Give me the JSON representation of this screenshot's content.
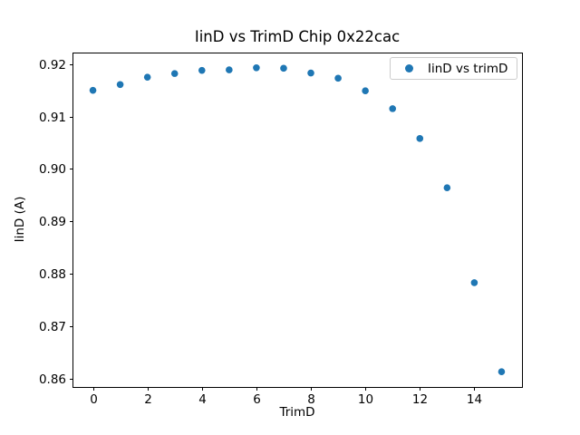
{
  "figure": {
    "background_color": "#ffffff"
  },
  "chart_data": {
    "type": "scatter",
    "title": "IinD vs TrimD Chip 0x22cac",
    "xlabel": "TrimD",
    "ylabel": "IinD (A)",
    "legend": {
      "position": "upper right",
      "entries": [
        {
          "label": "IinD vs trimD",
          "marker": "circle-icon",
          "color": "#1f77b4"
        }
      ]
    },
    "x": [
      0,
      1,
      2,
      3,
      4,
      5,
      6,
      7,
      8,
      9,
      10,
      11,
      12,
      13,
      14,
      15
    ],
    "series": [
      {
        "name": "IinD vs trimD",
        "values": [
          0.915,
          0.9161,
          0.9175,
          0.9182,
          0.9188,
          0.9189,
          0.9193,
          0.9192,
          0.9183,
          0.9173,
          0.9149,
          0.9115,
          0.9058,
          0.8964,
          0.8783,
          0.8613
        ]
      }
    ],
    "xlim": [
      -0.75,
      15.75
    ],
    "ylim": [
      0.8584,
      0.9222
    ],
    "xticks": [
      0,
      2,
      4,
      6,
      8,
      10,
      12,
      14
    ],
    "xtick_labels": [
      "0",
      "2",
      "4",
      "6",
      "8",
      "10",
      "12",
      "14"
    ],
    "yticks": [
      0.86,
      0.87,
      0.88,
      0.89,
      0.9,
      0.91,
      0.92
    ],
    "ytick_labels": [
      "0.86",
      "0.87",
      "0.88",
      "0.89",
      "0.90",
      "0.91",
      "0.92"
    ],
    "grid": false,
    "marker_color": "#1f77b4",
    "axis_color": "#000000",
    "legend_border_color": "#cccccc"
  }
}
